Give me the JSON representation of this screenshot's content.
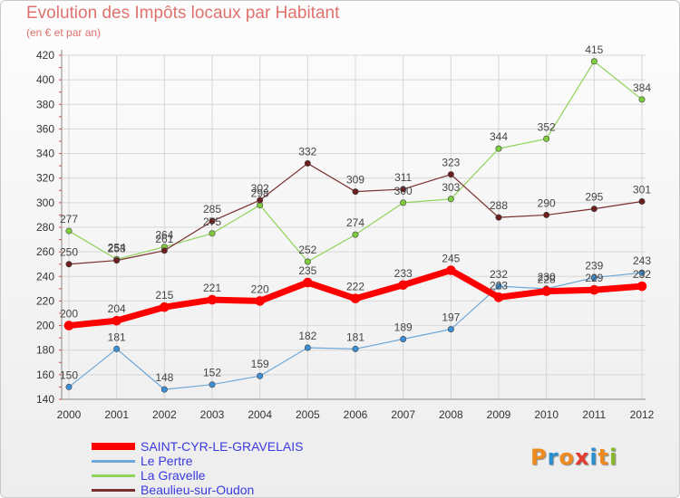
{
  "title": "Evolution des Impôts locaux par Habitant",
  "subtitle": "(en € et par an)",
  "logo": {
    "text": "Proxiti",
    "colors": [
      "#f08a1e",
      "#2a8fd0",
      "#f08a1e",
      "#e53b2e",
      "#2a8fd0",
      "#f08a1e",
      "#86b82a"
    ]
  },
  "chart_data": {
    "type": "line",
    "title": "Evolution des Impôts locaux par Habitant",
    "subtitle": "(en € et par an)",
    "xlabel": "",
    "ylabel": "",
    "x": [
      2000,
      2001,
      2002,
      2003,
      2004,
      2005,
      2006,
      2007,
      2008,
      2009,
      2010,
      2011,
      2012
    ],
    "ylim": [
      140,
      420
    ],
    "yticks": [
      140,
      160,
      180,
      200,
      220,
      240,
      260,
      280,
      300,
      320,
      340,
      360,
      380,
      400,
      420
    ],
    "grid": true,
    "legend_position": "bottom-left",
    "series": [
      {
        "name": "SAINT-CYR-LE-GRAVELAIS",
        "color": "#ff0000",
        "marker": "#ff0000",
        "width": 7,
        "label_pos": "above",
        "values": [
          200,
          204,
          215,
          221,
          220,
          235,
          222,
          233,
          245,
          223,
          228,
          229,
          232
        ]
      },
      {
        "name": "Le Pertre",
        "color": "#6fa8d8",
        "marker": "#3b8fd6",
        "width": 1.2,
        "label_pos": "above",
        "values": [
          150,
          181,
          148,
          152,
          159,
          182,
          181,
          189,
          197,
          232,
          230,
          239,
          243
        ]
      },
      {
        "name": "La Gravelle",
        "color": "#8fd45a",
        "marker": "#7ccc3c",
        "width": 1.2,
        "label_pos": "above",
        "values": [
          277,
          254,
          264,
          275,
          298,
          252,
          274,
          300,
          303,
          344,
          352,
          415,
          384
        ]
      },
      {
        "name": "Beaulieu-sur-Oudon",
        "color": "#7a2e2e",
        "marker": "#6b1e1e",
        "width": 1.2,
        "label_pos": "above",
        "values": [
          250,
          253,
          261,
          285,
          302,
          332,
          309,
          311,
          323,
          288,
          290,
          295,
          301
        ]
      }
    ]
  }
}
